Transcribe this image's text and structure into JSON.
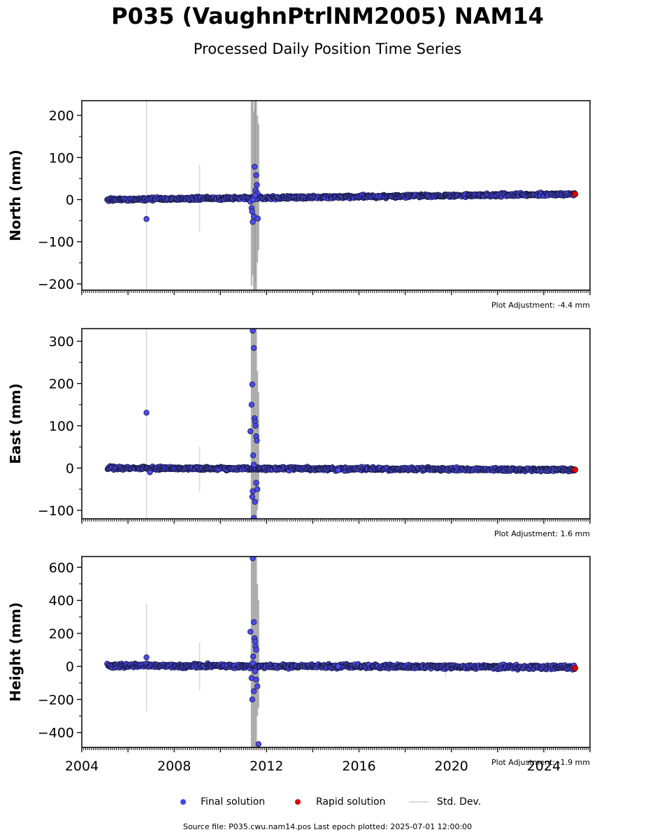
{
  "chart_data": {
    "type": "scatter",
    "title": "P035 (VaughnPtrlNM2005) NAM14",
    "subtitle": "Processed Daily Position Time Series",
    "xlim": [
      2004,
      2026
    ],
    "x_ticks": [
      2004,
      2008,
      2012,
      2016,
      2020,
      2024
    ],
    "legend_placement": "bottom-center",
    "legend": [
      {
        "label": "Final solution",
        "color": "#4444ee",
        "marker": "dot"
      },
      {
        "label": "Rapid solution",
        "color": "#dd0000",
        "marker": "dot"
      },
      {
        "label": "Std. Dev.",
        "color": "#d9d9d9",
        "marker": "line"
      }
    ],
    "colors": {
      "final": "#4a4af0",
      "rapid": "#e00000",
      "stddev": "#d6d6d6",
      "stddev_dense": "#9a9a9a"
    },
    "panels": [
      {
        "ylabel": "North (mm)",
        "ylim": [
          -215,
          235
        ],
        "y_ticks": [
          -200,
          -100,
          0,
          100,
          200
        ],
        "adjustment": "Plot Adjustment: -4.4 mm",
        "trend": {
          "start_year": 2005.1,
          "start_value": 0,
          "end_year": 2025.3,
          "end_value": 13,
          "noise": 2.5
        },
        "outliers": [
          [
            2006.8,
            -46
          ],
          [
            2011.3,
            -5
          ],
          [
            2011.35,
            -20
          ],
          [
            2011.37,
            -28
          ],
          [
            2011.4,
            -53
          ],
          [
            2011.42,
            0
          ],
          [
            2011.45,
            -40
          ],
          [
            2011.48,
            78
          ],
          [
            2011.52,
            22
          ],
          [
            2011.55,
            58
          ],
          [
            2011.58,
            35
          ],
          [
            2011.62,
            -45
          ],
          [
            2011.6,
            15
          ],
          [
            2011.5,
            10
          ]
        ],
        "rapid": [
          [
            2025.35,
            13
          ]
        ],
        "stddev_bars": [
          [
            2006.8,
            -215,
            235
          ],
          [
            2009.1,
            -75,
            82
          ],
          [
            2011.35,
            -205,
            235
          ],
          [
            2011.4,
            -180,
            235
          ],
          [
            2011.45,
            -215,
            210
          ],
          [
            2011.5,
            -195,
            235
          ],
          [
            2011.55,
            -215,
            235
          ],
          [
            2011.6,
            -150,
            200
          ],
          [
            2011.65,
            -120,
            180
          ],
          [
            2011.5,
            -215,
            235
          ]
        ]
      },
      {
        "ylabel": "East (mm)",
        "ylim": [
          -120,
          330
        ],
        "y_ticks": [
          -100,
          0,
          100,
          200,
          300
        ],
        "adjustment": "Plot Adjustment: 1.6 mm",
        "trend": {
          "start_year": 2005.1,
          "start_value": 0,
          "end_year": 2025.3,
          "end_value": -4,
          "noise": 2.5
        },
        "outliers": [
          [
            2006.8,
            131
          ],
          [
            2006.95,
            -10
          ],
          [
            2011.3,
            87
          ],
          [
            2011.35,
            150
          ],
          [
            2011.38,
            198
          ],
          [
            2011.4,
            325
          ],
          [
            2011.45,
            284
          ],
          [
            2011.48,
            118
          ],
          [
            2011.5,
            110
          ],
          [
            2011.52,
            100
          ],
          [
            2011.55,
            75
          ],
          [
            2011.58,
            65
          ],
          [
            2011.42,
            30
          ],
          [
            2011.45,
            8
          ],
          [
            2011.4,
            -55
          ],
          [
            2011.38,
            -68
          ],
          [
            2011.5,
            -80
          ],
          [
            2011.55,
            -35
          ],
          [
            2011.6,
            -50
          ],
          [
            2011.45,
            -118
          ],
          [
            2015.1,
            -5
          ]
        ],
        "rapid": [
          [
            2025.35,
            -4
          ]
        ],
        "stddev_bars": [
          [
            2006.8,
            -120,
            330
          ],
          [
            2009.1,
            -55,
            50
          ],
          [
            2011.35,
            -120,
            330
          ],
          [
            2011.4,
            -120,
            330
          ],
          [
            2011.45,
            -120,
            330
          ],
          [
            2011.5,
            -120,
            330
          ],
          [
            2011.55,
            -120,
            330
          ],
          [
            2011.6,
            -100,
            230
          ],
          [
            2011.65,
            -80,
            180
          ]
        ]
      },
      {
        "ylabel": "Height (mm)",
        "ylim": [
          -490,
          665
        ],
        "y_ticks": [
          -400,
          -200,
          0,
          200,
          400,
          600
        ],
        "adjustment": "Plot Adjustment: -1.9 mm",
        "trend": {
          "start_year": 2005.1,
          "start_value": 5,
          "end_year": 2025.3,
          "end_value": -5,
          "noise": 8
        },
        "outliers": [
          [
            2006.8,
            55
          ],
          [
            2011.3,
            210
          ],
          [
            2011.35,
            -70
          ],
          [
            2011.38,
            -200
          ],
          [
            2011.4,
            655
          ],
          [
            2011.45,
            268
          ],
          [
            2011.48,
            170
          ],
          [
            2011.5,
            150
          ],
          [
            2011.52,
            120
          ],
          [
            2011.55,
            100
          ],
          [
            2011.42,
            60
          ],
          [
            2011.5,
            -30
          ],
          [
            2011.55,
            -80
          ],
          [
            2011.6,
            -120
          ],
          [
            2011.45,
            -150
          ],
          [
            2011.65,
            -470
          ],
          [
            2011.4,
            20
          ],
          [
            2015.1,
            0
          ]
        ],
        "rapid": [
          [
            2025.35,
            -10
          ]
        ],
        "stddev_bars": [
          [
            2006.8,
            -275,
            380
          ],
          [
            2009.1,
            -145,
            145
          ],
          [
            2011.35,
            -490,
            665
          ],
          [
            2011.4,
            -490,
            665
          ],
          [
            2011.45,
            -490,
            665
          ],
          [
            2011.5,
            -490,
            665
          ],
          [
            2011.55,
            -490,
            665
          ],
          [
            2011.6,
            -300,
            500
          ],
          [
            2011.65,
            -250,
            400
          ],
          [
            2019.75,
            -65,
            10
          ]
        ]
      }
    ]
  },
  "footer": "Source file: P035.cwu.nam14.pos  Last epoch plotted: 2025-07-01 12:00:00"
}
